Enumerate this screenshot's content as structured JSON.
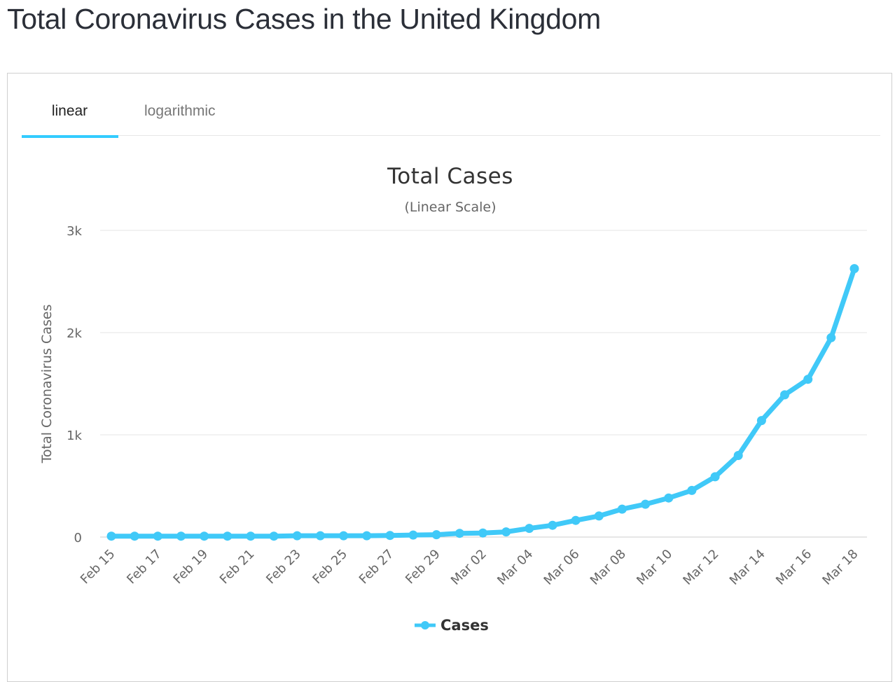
{
  "page": {
    "title": "Total Coronavirus Cases in the United Kingdom"
  },
  "tabs": [
    {
      "label": "linear",
      "active": true
    },
    {
      "label": "logarithmic",
      "active": false
    }
  ],
  "colors": {
    "series": "#40c9f8",
    "tab_underline": "#33ccff"
  },
  "chart_data": {
    "type": "line",
    "title": "Total Cases",
    "subtitle": "(Linear Scale)",
    "ylabel": "Total Coronavirus Cases",
    "xlabel": "",
    "ylim": [
      0,
      3000
    ],
    "y_ticks": [
      {
        "value": 0,
        "label": "0"
      },
      {
        "value": 1000,
        "label": "1k"
      },
      {
        "value": 2000,
        "label": "2k"
      },
      {
        "value": 3000,
        "label": "3k"
      }
    ],
    "x_tick_labels": [
      "Feb 15",
      "Feb 17",
      "Feb 19",
      "Feb 21",
      "Feb 23",
      "Feb 25",
      "Feb 27",
      "Feb 29",
      "Mar 02",
      "Mar 04",
      "Mar 06",
      "Mar 08",
      "Mar 10",
      "Mar 12",
      "Mar 14",
      "Mar 16",
      "Mar 18"
    ],
    "grid": true,
    "legend": "bottom-center",
    "x": [
      "Feb 15",
      "Feb 16",
      "Feb 17",
      "Feb 18",
      "Feb 19",
      "Feb 20",
      "Feb 21",
      "Feb 22",
      "Feb 23",
      "Feb 24",
      "Feb 25",
      "Feb 26",
      "Feb 27",
      "Feb 28",
      "Feb 29",
      "Mar 01",
      "Mar 02",
      "Mar 03",
      "Mar 04",
      "Mar 05",
      "Mar 06",
      "Mar 07",
      "Mar 08",
      "Mar 09",
      "Mar 10",
      "Mar 11",
      "Mar 12",
      "Mar 13",
      "Mar 14",
      "Mar 15",
      "Mar 16",
      "Mar 17",
      "Mar 18"
    ],
    "series": [
      {
        "name": "Cases",
        "values": [
          9,
          9,
          9,
          9,
          9,
          9,
          9,
          9,
          13,
          13,
          13,
          13,
          16,
          20,
          23,
          36,
          40,
          51,
          85,
          115,
          163,
          206,
          273,
          321,
          382,
          456,
          590,
          798,
          1140,
          1391,
          1543,
          1950,
          2626
        ]
      }
    ]
  }
}
